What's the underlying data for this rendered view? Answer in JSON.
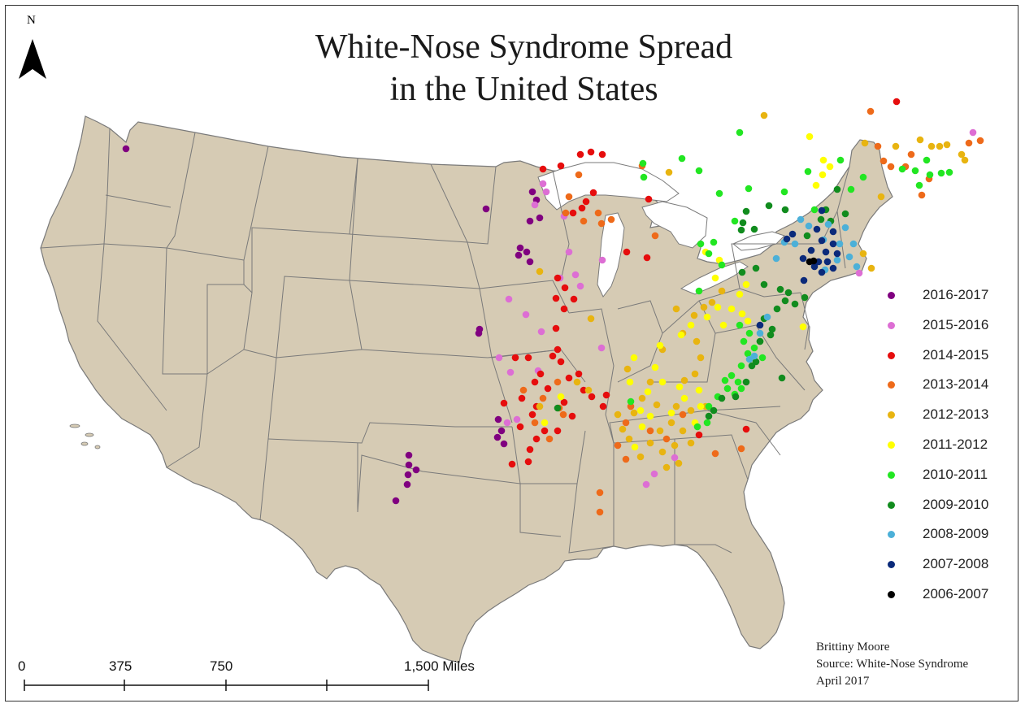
{
  "title": {
    "line1": "White-Nose Syndrome Spread",
    "line2": "in the United States"
  },
  "north_arrow": {
    "label": "N",
    "icon": "north-arrow-icon"
  },
  "credits": {
    "author": "Brittiny Moore",
    "source": "Source:  White-Nose Syndrome",
    "date": "April 2017"
  },
  "scale_bar": {
    "labels": [
      "0",
      "375",
      "750",
      "1,500 Miles"
    ],
    "icon": "scale-bar-icon"
  },
  "colors": {
    "land": "#d6cbb4",
    "border": "#7a7a7a",
    "water": "#ffffff"
  },
  "legend": [
    {
      "label": "2016-2017",
      "color": "#800080"
    },
    {
      "label": "2015-2016",
      "color": "#dd6ed4"
    },
    {
      "label": "2014-2015",
      "color": "#e60d0d"
    },
    {
      "label": "2013-2014",
      "color": "#ee6a1a"
    },
    {
      "label": "2012-2013",
      "color": "#e8b410"
    },
    {
      "label": "2011-2012",
      "color": "#ffff00"
    },
    {
      "label": "2010-2011",
      "color": "#22e622"
    },
    {
      "label": "2009-2010",
      "color": "#118c1e"
    },
    {
      "label": "2008-2009",
      "color": "#4cb0d8"
    },
    {
      "label": "2007-2008",
      "color": "#0b2a7a"
    },
    {
      "label": "2006-2007",
      "color": "#000000"
    }
  ]
}
